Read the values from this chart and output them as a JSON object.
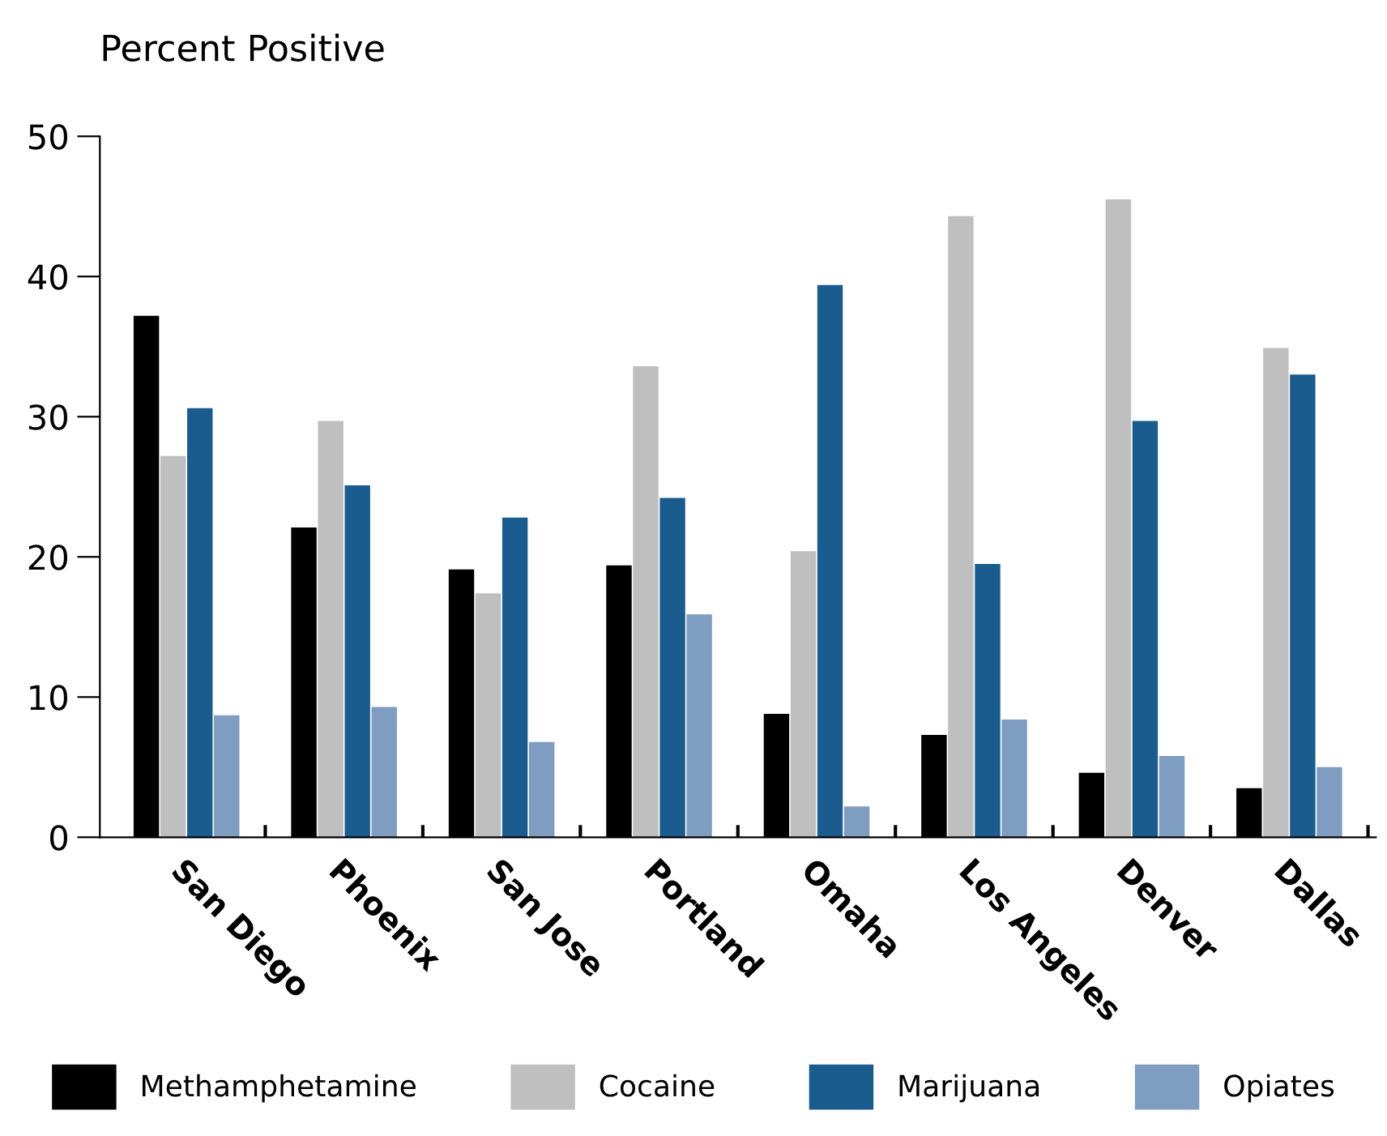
{
  "chart_data": {
    "type": "bar",
    "title": "Percent Positive",
    "categories": [
      "San Diego",
      "Phoenix",
      "San Jose",
      "Portland",
      "Omaha",
      "Los Angeles",
      "Denver",
      "Dallas"
    ],
    "series": [
      {
        "name": "Methamphetamine",
        "color": "#000000",
        "values": [
          37.2,
          22.1,
          19.1,
          19.4,
          8.8,
          7.3,
          4.6,
          3.5
        ]
      },
      {
        "name": "Cocaine",
        "color": "#bfbfbf",
        "values": [
          27.2,
          29.7,
          17.4,
          33.6,
          20.4,
          44.3,
          45.5,
          34.9
        ]
      },
      {
        "name": "Marijuana",
        "color": "#1a5c8e",
        "values": [
          30.6,
          25.1,
          22.8,
          24.2,
          39.4,
          19.5,
          29.7,
          33.0
        ]
      },
      {
        "name": "Opiates",
        "color": "#7f9dc0",
        "values": [
          8.7,
          9.3,
          6.8,
          15.9,
          2.2,
          8.4,
          5.8,
          5.0
        ]
      }
    ],
    "ylim": [
      0,
      50
    ],
    "yticks": [
      0,
      10,
      20,
      30,
      40,
      50
    ],
    "grid": false,
    "legend": "bottom"
  }
}
